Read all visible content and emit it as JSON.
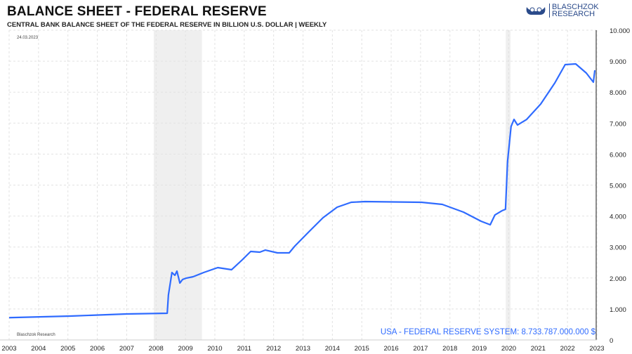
{
  "header": {
    "title": "BALANCE SHEET - FEDERAL RESERVE",
    "subtitle": "CENTRAL BANK BALANCE SHEET OF THE FEDERAL RESERVE IN BILLION U.S. DOLLAR | WEEKLY",
    "date": "24.03.2023"
  },
  "logo": {
    "line1": "BLASCHZOK",
    "line2": "RESEARCH"
  },
  "footer": {
    "source": "Blaschzok Research",
    "value_label": "USA - FEDERAL RESERVE SYSTEM: 8.733.787.000.000 $"
  },
  "chart_data": {
    "type": "line",
    "title": "BALANCE SHEET - FEDERAL RESERVE",
    "xlabel": "",
    "ylabel": "Billion U.S. Dollar",
    "xlim": [
      2003,
      2023
    ],
    "ylim": [
      0,
      10000
    ],
    "x_ticks": [
      "2003",
      "2004",
      "2005",
      "2006",
      "2007",
      "2008",
      "2009",
      "2010",
      "2011",
      "2012",
      "2013",
      "2014",
      "2015",
      "2016",
      "2017",
      "2018",
      "2019",
      "2020",
      "2021",
      "2022",
      "2023"
    ],
    "y_ticks": [
      {
        "v": 0,
        "label": "0"
      },
      {
        "v": 1000,
        "label": "1.000"
      },
      {
        "v": 2000,
        "label": "2.000"
      },
      {
        "v": 3000,
        "label": "3.000"
      },
      {
        "v": 4000,
        "label": "4.000"
      },
      {
        "v": 5000,
        "label": "5.000"
      },
      {
        "v": 6000,
        "label": "6.000"
      },
      {
        "v": 7000,
        "label": "7.000"
      },
      {
        "v": 8000,
        "label": "8.000"
      },
      {
        "v": 9000,
        "label": "9.000"
      },
      {
        "v": 10000,
        "label": "10.000"
      }
    ],
    "recessions": [
      [
        2007.92,
        2009.56
      ],
      [
        2019.9,
        2020.06
      ]
    ],
    "color": "#2f6bff",
    "series": [
      {
        "name": "USA - Federal Reserve System",
        "x": [
          2003,
          2005.08,
          2006.99,
          2008.38,
          2008.42,
          2008.54,
          2008.64,
          2008.71,
          2008.81,
          2008.9,
          2009.02,
          2009.26,
          2009.62,
          2010.1,
          2010.57,
          2010.93,
          2011.22,
          2011.53,
          2011.72,
          2012.13,
          2012.53,
          2012.73,
          2013.2,
          2013.68,
          2014.16,
          2014.64,
          2015.11,
          2017.03,
          2017.74,
          2018.46,
          2019.06,
          2019.37,
          2019.53,
          2019.77,
          2019.89,
          2019.96,
          2020.08,
          2020.18,
          2020.3,
          2020.61,
          2021.09,
          2021.57,
          2021.92,
          2022.28,
          2022.64,
          2022.88,
          2022.93
        ],
        "y": [
          720,
          771,
          839,
          862,
          1451,
          2177,
          2086,
          2222,
          1837,
          1950,
          1995,
          2041,
          2177,
          2336,
          2268,
          2585,
          2857,
          2834,
          2902,
          2812,
          2812,
          3039,
          3492,
          3946,
          4286,
          4444,
          4467,
          4444,
          4376,
          4127,
          3832,
          3719,
          4036,
          4172,
          4218,
          5760,
          6893,
          7120,
          6939,
          7120,
          7619,
          8299,
          8889,
          8912,
          8617,
          8322,
          8707
        ]
      }
    ]
  }
}
